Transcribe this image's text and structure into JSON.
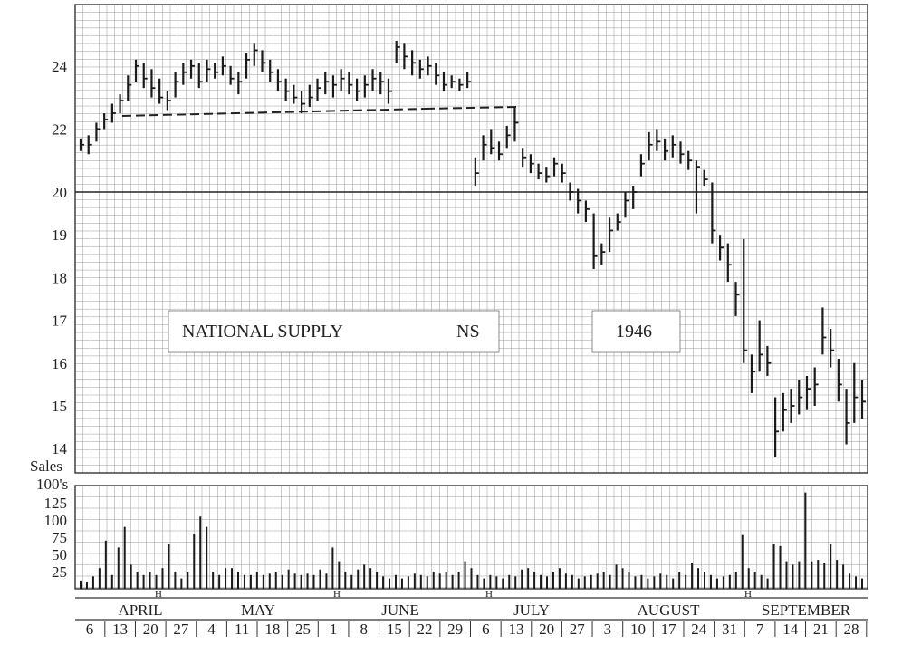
{
  "chart_data": [
    {
      "type": "bar",
      "subtype": "high-low-close daily price chart",
      "title_box": {
        "company": "NATIONAL SUPPLY",
        "symbol": "NS",
        "year": "1946"
      },
      "y_tick_labels": [
        "24",
        "22",
        "20",
        "19",
        "18",
        "17",
        "16",
        "15",
        "14"
      ],
      "ylim": [
        13.6,
        25.8
      ],
      "grid": true,
      "support_line_note": "dashed trendline near 22.4-22.6",
      "series": [
        {
          "values": [
            [
              21.7,
              21.3,
              21.5
            ],
            [
              21.8,
              21.2,
              21.5
            ],
            [
              22.2,
              21.6,
              22.0
            ],
            [
              22.5,
              22.0,
              22.3
            ],
            [
              22.8,
              22.2,
              22.5
            ],
            [
              23.1,
              22.5,
              22.9
            ],
            [
              23.7,
              22.9,
              23.4
            ],
            [
              24.2,
              23.5,
              24.0
            ],
            [
              24.1,
              23.3,
              23.6
            ],
            [
              23.9,
              23.0,
              23.3
            ],
            [
              23.6,
              22.8,
              23.0
            ],
            [
              23.2,
              22.6,
              22.9
            ],
            [
              23.8,
              23.0,
              23.5
            ],
            [
              24.1,
              23.4,
              23.8
            ],
            [
              24.2,
              23.6,
              24.0
            ],
            [
              24.1,
              23.3,
              23.5
            ],
            [
              24.2,
              23.5,
              23.9
            ],
            [
              24.1,
              23.6,
              23.8
            ],
            [
              24.3,
              23.7,
              24.0
            ],
            [
              24.0,
              23.4,
              23.6
            ],
            [
              23.8,
              23.1,
              23.5
            ],
            [
              24.4,
              23.6,
              24.2
            ],
            [
              24.7,
              24.0,
              24.5
            ],
            [
              24.5,
              23.8,
              24.1
            ],
            [
              24.2,
              23.5,
              23.8
            ],
            [
              23.9,
              23.2,
              23.5
            ],
            [
              23.6,
              22.9,
              23.2
            ],
            [
              23.4,
              22.8,
              23.0
            ],
            [
              23.2,
              22.5,
              22.8
            ],
            [
              23.4,
              22.7,
              23.0
            ],
            [
              23.6,
              22.9,
              23.3
            ],
            [
              23.8,
              23.1,
              23.5
            ],
            [
              23.7,
              23.0,
              23.4
            ],
            [
              23.9,
              23.2,
              23.6
            ],
            [
              23.8,
              23.1,
              23.4
            ],
            [
              23.6,
              22.9,
              23.2
            ],
            [
              23.7,
              23.0,
              23.4
            ],
            [
              23.9,
              23.2,
              23.6
            ],
            [
              23.8,
              23.1,
              23.5
            ],
            [
              23.6,
              22.8,
              23.2
            ],
            [
              24.8,
              24.1,
              24.6
            ],
            [
              24.7,
              23.9,
              24.3
            ],
            [
              24.5,
              23.7,
              24.1
            ],
            [
              24.2,
              23.6,
              23.9
            ],
            [
              24.3,
              23.7,
              24.0
            ],
            [
              24.1,
              23.4,
              23.7
            ],
            [
              23.8,
              23.2,
              23.4
            ],
            [
              23.7,
              23.3,
              23.5
            ],
            [
              23.6,
              23.2,
              23.4
            ],
            [
              23.8,
              23.3,
              23.5
            ],
            [
              21.1,
              20.2,
              20.6
            ],
            [
              21.8,
              21.0,
              21.5
            ],
            [
              22.0,
              21.2,
              21.4
            ],
            [
              21.6,
              21.0,
              21.2
            ],
            [
              22.1,
              21.4,
              21.8
            ],
            [
              22.7,
              21.6,
              22.2
            ],
            [
              21.4,
              20.8,
              21.1
            ],
            [
              21.2,
              20.6,
              20.9
            ],
            [
              20.9,
              20.4,
              20.6
            ],
            [
              20.8,
              20.3,
              20.5
            ],
            [
              21.1,
              20.5,
              20.9
            ],
            [
              20.9,
              20.3,
              20.6
            ],
            [
              20.3,
              19.8,
              20.0
            ],
            [
              20.1,
              19.5,
              19.8
            ],
            [
              19.8,
              19.3,
              19.6
            ],
            [
              19.5,
              18.2,
              18.5
            ],
            [
              18.8,
              18.3,
              18.6
            ],
            [
              19.4,
              18.6,
              19.1
            ],
            [
              19.5,
              19.1,
              19.3
            ],
            [
              20.0,
              19.4,
              19.8
            ],
            [
              20.2,
              19.6,
              20.0
            ],
            [
              21.2,
              20.5,
              20.9
            ],
            [
              21.9,
              21.0,
              21.5
            ],
            [
              22.0,
              21.3,
              21.6
            ],
            [
              21.7,
              21.0,
              21.3
            ],
            [
              21.8,
              21.1,
              21.5
            ],
            [
              21.6,
              20.9,
              21.2
            ],
            [
              21.3,
              20.7,
              21.0
            ],
            [
              21.0,
              19.5,
              20.8
            ],
            [
              20.7,
              20.2,
              20.4
            ],
            [
              20.3,
              18.8,
              19.1
            ],
            [
              19.0,
              18.4,
              18.7
            ],
            [
              18.8,
              17.9,
              18.3
            ],
            [
              17.9,
              17.1,
              17.6
            ],
            [
              18.9,
              16.0,
              16.3
            ],
            [
              16.2,
              15.3,
              15.8
            ],
            [
              17.0,
              15.8,
              16.2
            ],
            [
              16.4,
              15.7,
              16.0
            ],
            [
              15.2,
              13.8,
              14.4
            ],
            [
              15.3,
              14.4,
              14.9
            ],
            [
              15.4,
              14.6,
              15.0
            ],
            [
              15.6,
              14.8,
              15.2
            ],
            [
              15.7,
              14.9,
              15.4
            ],
            [
              15.9,
              15.0,
              15.5
            ],
            [
              17.3,
              16.2,
              16.6
            ],
            [
              16.8,
              15.9,
              16.3
            ],
            [
              16.1,
              15.1,
              15.5
            ],
            [
              15.4,
              14.1,
              14.6
            ],
            [
              16.0,
              14.6,
              15.2
            ],
            [
              15.6,
              14.7,
              15.1
            ]
          ]
        }
      ],
      "value_format": "each entry [high, low, close]"
    },
    {
      "type": "bar",
      "ylabel_lines": [
        "Sales",
        "100's"
      ],
      "y_tick_labels": [
        "125",
        "100",
        "75",
        "50",
        "25"
      ],
      "ylim": [
        0,
        150
      ],
      "values": [
        12,
        10,
        18,
        30,
        70,
        20,
        60,
        90,
        35,
        25,
        20,
        25,
        20,
        30,
        65,
        25,
        15,
        25,
        80,
        105,
        90,
        25,
        20,
        30,
        30,
        25,
        20,
        20,
        25,
        20,
        22,
        25,
        20,
        28,
        22,
        20,
        22,
        20,
        28,
        22,
        60,
        40,
        25,
        20,
        28,
        35,
        30,
        25,
        18,
        15,
        20,
        15,
        18,
        22,
        20,
        18,
        25,
        22,
        25,
        20,
        25,
        40,
        30,
        20,
        15,
        20,
        18,
        15,
        20,
        18,
        28,
        30,
        25,
        20,
        18,
        25,
        30,
        22,
        20,
        15,
        18,
        20,
        22,
        25,
        20,
        35,
        30,
        25,
        18,
        20,
        15,
        18,
        22,
        20,
        15,
        25,
        20,
        38,
        30,
        25,
        20,
        15,
        18,
        20,
        25,
        78,
        30,
        25,
        20,
        15,
        65,
        62,
        40,
        35,
        40,
        140,
        40,
        42,
        38,
        65,
        42,
        35,
        22,
        18,
        15
      ]
    }
  ],
  "months": [
    "APRIL",
    "MAY",
    "JUNE",
    "JULY",
    "AUGUST",
    "SEPTEMBER"
  ],
  "week_labels": [
    "6",
    "13",
    "20",
    "27",
    "4",
    "11",
    "18",
    "25",
    "1",
    "8",
    "15",
    "22",
    "29",
    "6",
    "13",
    "20",
    "27",
    "3",
    "10",
    "17",
    "24",
    "31",
    "7",
    "14",
    "21",
    "28"
  ]
}
